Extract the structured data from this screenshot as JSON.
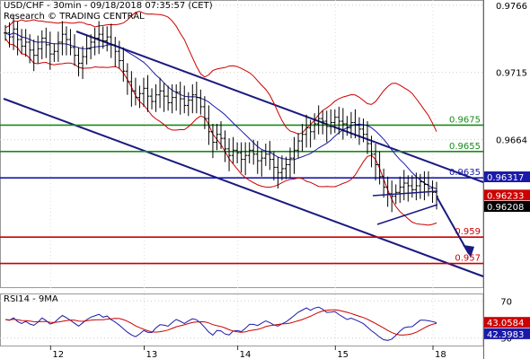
{
  "header": {
    "line1": "USD/CHF - 30min - 09/18/2018 07:35:57 (CET)",
    "line2": "Research © TRADING CENTRAL"
  },
  "chart_data": [
    {
      "type": "candlestick",
      "title": "USD/CHF - 30min - 09/18/2018 07:35:57 (CET)",
      "ylim": [
        0.9552,
        0.977
      ],
      "y_ticks": [
        "0.9766",
        "0.9715",
        "0.9664"
      ],
      "x_tick_labels": [
        "12",
        "13",
        "14",
        "15",
        "18"
      ],
      "level_lines": [
        {
          "value": 0.9675,
          "label": "0.9675",
          "color": "#1a8a1a"
        },
        {
          "value": 0.9655,
          "label": "0.9655",
          "color": "#1a8a1a"
        },
        {
          "value": 0.9635,
          "label": "0.9635",
          "color": "#1a1aaa"
        },
        {
          "value": 0.959,
          "label": "0.959",
          "color": "#cc0000"
        },
        {
          "value": 0.957,
          "label": "0.957",
          "color": "#cc0000"
        }
      ],
      "price_tags": [
        {
          "value": 0.96317,
          "label": "0.96317",
          "color": "#1a1aaa"
        },
        {
          "value": 0.96233,
          "label": "0.96233",
          "color": "#cc0000"
        },
        {
          "value": 0.96208,
          "label": "0.96208",
          "color": "#000000"
        }
      ],
      "candles": [
        0.9745,
        0.9742,
        0.9748,
        0.974,
        0.9735,
        0.9738,
        0.9732,
        0.9728,
        0.9733,
        0.9741,
        0.9736,
        0.9729,
        0.9731,
        0.9738,
        0.9744,
        0.974,
        0.9734,
        0.9728,
        0.9722,
        0.9727,
        0.9733,
        0.9738,
        0.9741,
        0.9744,
        0.9739,
        0.9742,
        0.9736,
        0.9731,
        0.9724,
        0.9716,
        0.9708,
        0.9701,
        0.9696,
        0.9699,
        0.9703,
        0.9697,
        0.9693,
        0.9698,
        0.9701,
        0.9697,
        0.9692,
        0.9696,
        0.97,
        0.9695,
        0.969,
        0.9694,
        0.9698,
        0.9696,
        0.9689,
        0.968,
        0.967,
        0.9662,
        0.9668,
        0.9665,
        0.9657,
        0.9652,
        0.9656,
        0.9654,
        0.9649,
        0.9652,
        0.9656,
        0.9653,
        0.9648,
        0.965,
        0.9653,
        0.9649,
        0.9643,
        0.9639,
        0.9642,
        0.9645,
        0.965,
        0.9656,
        0.9663,
        0.9668,
        0.9673,
        0.967,
        0.9676,
        0.968,
        0.9678,
        0.9674,
        0.9677,
        0.9681,
        0.9678,
        0.9676,
        0.9673,
        0.9677,
        0.9675,
        0.9672,
        0.9668,
        0.9661,
        0.9653,
        0.9645,
        0.9636,
        0.9628,
        0.9623,
        0.9621,
        0.9624,
        0.9628,
        0.9631,
        0.9629,
        0.9626,
        0.9629,
        0.9632,
        0.963,
        0.9627,
        0.9624,
        0.9621
      ],
      "projection_arrow": {
        "from": 0.96208,
        "to": 0.958
      }
    },
    {
      "type": "line",
      "title": "RSI14 - 9MA",
      "ylim": [
        22,
        78
      ],
      "y_ticks": [
        "70",
        "30"
      ],
      "price_tags": [
        {
          "value": 43.0584,
          "label": "43.0584",
          "color": "#cc0000"
        },
        {
          "value": 42.3983,
          "label": "42.3983",
          "color": "#1a1aaa"
        }
      ]
    }
  ],
  "colors": {
    "channel": "#1a1a80",
    "bollinger": "#cc0000",
    "moving_average": "#1a1aaa",
    "candle": "#000000"
  }
}
